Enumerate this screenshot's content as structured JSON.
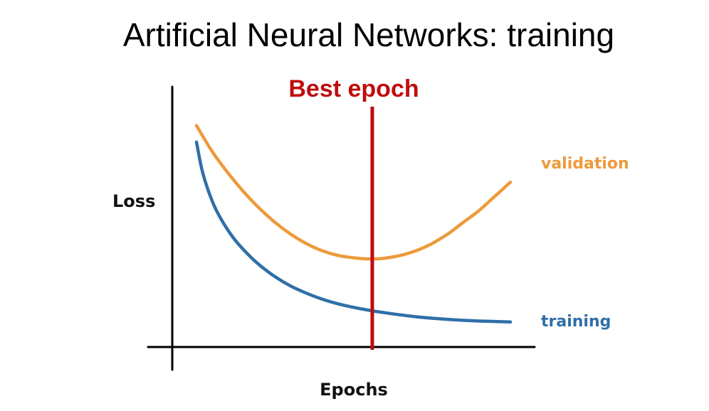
{
  "title": "Artificial Neural Networks: training",
  "chart_data": {
    "type": "line",
    "title": "Best epoch",
    "xlabel": "Epochs",
    "ylabel": "Loss",
    "xlim": [
      0,
      100
    ],
    "ylim": [
      0,
      100
    ],
    "grid": false,
    "best_epoch": 56,
    "series": [
      {
        "name": "validation",
        "x": [
          0,
          5,
          10,
          15,
          20,
          25,
          30,
          35,
          40,
          45,
          50,
          53,
          56,
          60,
          65,
          70,
          75,
          80,
          85,
          90,
          95,
          100
        ],
        "y": [
          92,
          81,
          72,
          64,
          57,
          51,
          46,
          42,
          39,
          37,
          36,
          35.6,
          35.5,
          35.8,
          37,
          39,
          42,
          46,
          51,
          56,
          62,
          68
        ]
      },
      {
        "name": "training",
        "x": [
          0,
          2,
          5,
          8,
          12,
          16,
          20,
          25,
          30,
          35,
          40,
          45,
          50,
          56,
          60,
          65,
          70,
          75,
          80,
          85,
          90,
          95,
          100
        ],
        "y": [
          85,
          72,
          60,
          52,
          44,
          38,
          33,
          28,
          24,
          21,
          18.5,
          16.5,
          15,
          13.5,
          12.7,
          11.8,
          11,
          10.4,
          9.9,
          9.5,
          9.2,
          9,
          8.8
        ]
      }
    ],
    "colors": {
      "validation": "#ed9a3b",
      "training": "#2f6fa8",
      "best_epoch": "#bf0d0d",
      "axis": "#000000"
    }
  }
}
